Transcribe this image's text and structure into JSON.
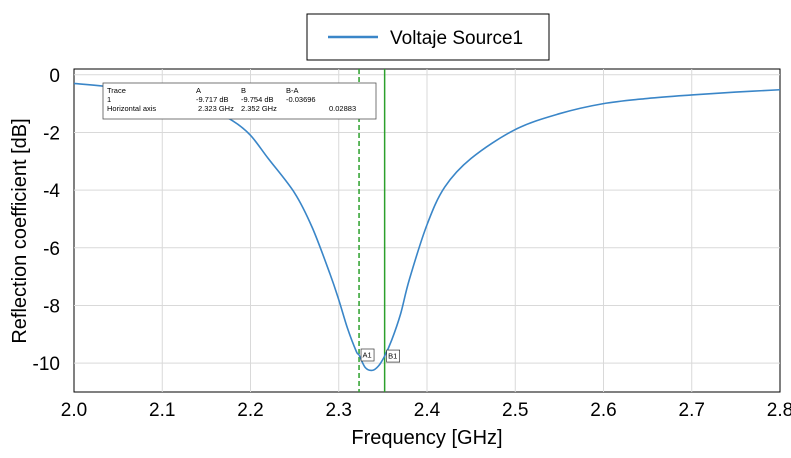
{
  "chart_data": {
    "type": "line",
    "xlabel": "Frequency [GHz]",
    "ylabel": "Reflection coefficient [dB]",
    "xlim": [
      2.0,
      2.8
    ],
    "ylim": [
      -11,
      0.2
    ],
    "x_ticks": [
      "2.0",
      "2.1",
      "2.2",
      "2.3",
      "2.4",
      "2.5",
      "2.6",
      "2.7",
      "2.8"
    ],
    "y_ticks": [
      "0",
      "-2",
      "-4",
      "-6",
      "-8",
      "-10"
    ],
    "grid": true,
    "legend": {
      "position": "top-center",
      "entries": [
        "Voltaje Source1"
      ]
    },
    "colors": {
      "series": "#3a86c8",
      "marker": "#2ca02c"
    },
    "series": [
      {
        "name": "Voltaje Source1",
        "x": [
          2.0,
          2.05,
          2.1,
          2.15,
          2.18,
          2.2,
          2.22,
          2.25,
          2.27,
          2.29,
          2.3,
          2.31,
          2.32,
          2.323,
          2.33,
          2.338,
          2.345,
          2.352,
          2.36,
          2.37,
          2.38,
          2.4,
          2.42,
          2.45,
          2.5,
          2.55,
          2.6,
          2.65,
          2.7,
          2.75,
          2.8
        ],
        "y": [
          -0.3,
          -0.45,
          -0.7,
          -1.15,
          -1.6,
          -2.1,
          -2.9,
          -4.1,
          -5.3,
          -6.9,
          -7.8,
          -8.8,
          -9.6,
          -9.717,
          -10.15,
          -10.25,
          -10.1,
          -9.754,
          -9.2,
          -8.3,
          -7.1,
          -5.2,
          -3.9,
          -2.9,
          -1.9,
          -1.35,
          -1.0,
          -0.82,
          -0.7,
          -0.6,
          -0.52
        ]
      }
    ],
    "markers": [
      {
        "label": "A1",
        "x": 2.323,
        "y": -9.717,
        "style": "dashed"
      },
      {
        "label": "B1",
        "x": 2.352,
        "y": -9.754,
        "style": "solid"
      }
    ],
    "table": {
      "header": [
        "Trace",
        "A",
        "B",
        "B-A"
      ],
      "rows": [
        [
          "1",
          "-9.717 dB",
          "-9.754 dB",
          "-0.03696"
        ],
        [
          "Horizontal axis",
          "2.323 GHz",
          "2.352 GHz",
          "0.02883"
        ]
      ]
    }
  }
}
